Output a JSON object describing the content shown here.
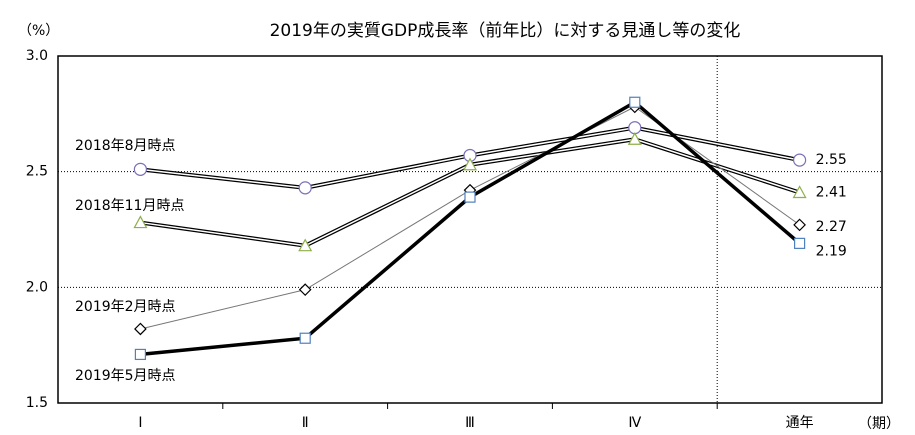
{
  "chart_data": {
    "type": "line",
    "title": "2019年の実質GDP成長率（前年比）に対する見通し等の変化",
    "y_unit": "（%）",
    "x_unit": "（期）",
    "categories": [
      "Ⅰ",
      "Ⅱ",
      "Ⅲ",
      "Ⅳ",
      "通年"
    ],
    "ylim": [
      1.5,
      3.0
    ],
    "yticks": [
      1.5,
      {
        "value": 2.0,
        "label": "2.0"
      },
      2.5,
      {
        "value": 3.0,
        "label": "3.0"
      }
    ],
    "grid": true,
    "series": [
      {
        "name": "2018年8月時点",
        "color": "#7b6fb8",
        "marker": "circle",
        "values": [
          2.51,
          2.43,
          2.57,
          2.69,
          2.55
        ]
      },
      {
        "name": "2018年11月時点",
        "color": "#8db04a",
        "marker": "triangle",
        "values": [
          2.28,
          2.18,
          2.53,
          2.64,
          2.41
        ]
      },
      {
        "name": "2019年2月時点",
        "color": "#000000",
        "marker": "diamond",
        "values": [
          1.82,
          1.99,
          2.42,
          2.78,
          2.27
        ]
      },
      {
        "name": "2019年5月時点",
        "color": "#4f81bd",
        "marker": "square",
        "values": [
          1.71,
          1.78,
          2.39,
          2.8,
          2.19
        ]
      }
    ]
  }
}
